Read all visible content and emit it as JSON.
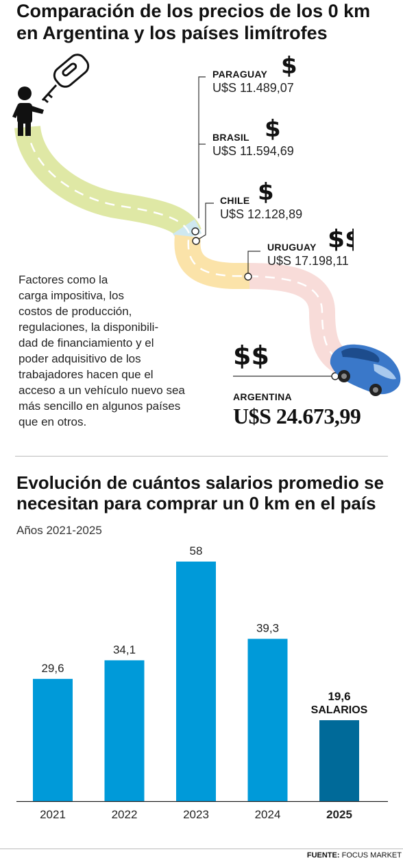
{
  "header": {
    "title_line1": "Comparación de los precios de los 0 km",
    "title_line2": "en Argentina y los países limítrofes"
  },
  "countries": [
    {
      "name": "PARAGUAY",
      "price": "U$S 11.489,07",
      "symbol": "$"
    },
    {
      "name": "BRASIL",
      "price": "U$S 11.594,69",
      "symbol": "$"
    },
    {
      "name": "CHILE",
      "price": "U$S 12.128,89",
      "symbol": "$"
    },
    {
      "name": "URUGUAY",
      "price": "U$S 17.198,11",
      "symbol": "$$"
    }
  ],
  "argentina": {
    "name": "ARGENTINA",
    "price": "U$S 24.673,99",
    "symbol": "$$$"
  },
  "description": "Factores como la carga impositiva, los costos de producción, regulaciones, la disponibili-dad de financiamiento y el poder adquisitivo de los trabajadores hacen que el acceso a un vehículo nuevo sea más sencillo en algunos países que en otros.",
  "description_lines": [
    "Factores como la",
    "carga impositiva, los",
    "costos de producción,",
    "regulaciones, la disponibili-",
    "dad de financiamiento y el",
    "poder adquisitivo de los",
    "trabajadores hacen que el",
    "acceso a un vehículo nuevo sea",
    "más sencillo en algunos países",
    "que en otros."
  ],
  "chart_section": {
    "title_line1": "Evolución de cuántos salarios promedio se",
    "title_line2": "necesitan para comprar un 0 km en el país",
    "subtitle": "Años 2021-2025"
  },
  "chart_data": {
    "type": "bar",
    "categories": [
      "2021",
      "2022",
      "2023",
      "2024",
      "2025"
    ],
    "values": [
      29.6,
      34.1,
      58,
      39.3,
      19.6
    ],
    "value_labels": [
      "29,6",
      "34,1",
      "58",
      "39,3",
      "19,6"
    ],
    "highlight_label_extra": "SALARIOS",
    "highlight_index": 4,
    "title": "Evolución de cuántos salarios promedio se necesitan para comprar un 0 km en el país",
    "subtitle": "Años 2021-2025",
    "ylim": [
      0,
      58
    ],
    "colors": {
      "bar": "#009ad9",
      "highlight": "#006a99"
    }
  },
  "source": {
    "label": "FUENTE:",
    "text": "FOCUS MARKET"
  },
  "colors": {
    "road_green": "#dfe8a5",
    "road_light_blue": "#cfe8f0",
    "road_yellow": "#fbe3a9",
    "road_pink": "#f8dcd9",
    "car_blue": "#3a78c9"
  }
}
